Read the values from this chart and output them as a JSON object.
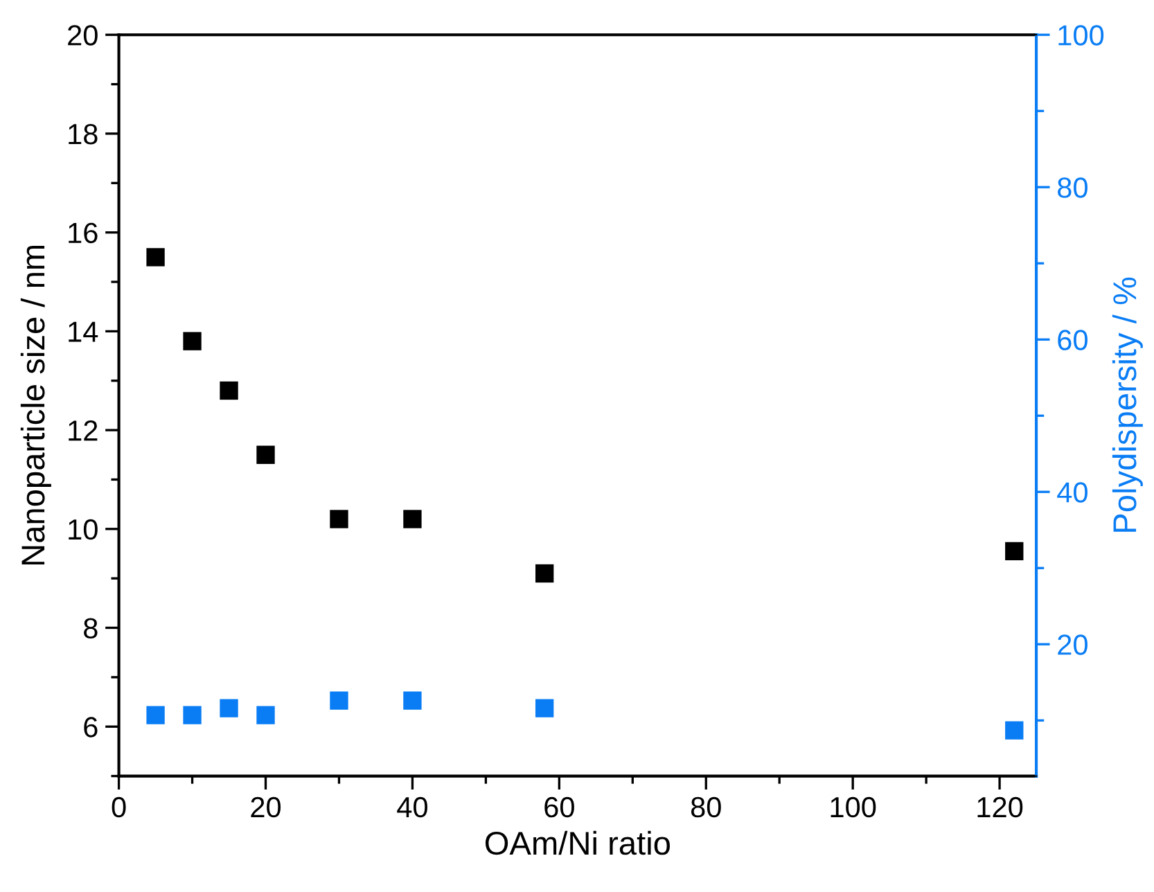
{
  "chart_data": {
    "type": "scatter",
    "xlabel": "OAm/Ni ratio",
    "ylabel": "Nanoparticle size / nm",
    "y2label": "Polydispersity / %",
    "marker": "square",
    "grid": false,
    "legend": false,
    "x": [
      5,
      10,
      15,
      20,
      30,
      40,
      58,
      122
    ],
    "series": [
      {
        "color": "#000000",
        "values": [
          15.5,
          13.8,
          12.8,
          11.5,
          10.2,
          10.2,
          9.1,
          9.55
        ]
      },
      {
        "color": "#0a7df5",
        "axis": "y2",
        "values": [
          10.7,
          10.7,
          11.6,
          10.7,
          12.6,
          12.6,
          11.6,
          8.7
        ]
      }
    ],
    "xlim": [
      0,
      125
    ],
    "xticks": [
      0,
      {
        "value": 10,
        "label": null
      },
      20,
      {
        "value": 30,
        "label": null
      },
      40,
      {
        "value": 50,
        "label": null
      },
      60,
      {
        "value": 70,
        "label": null
      },
      80,
      {
        "value": 90,
        "label": null
      },
      100,
      {
        "value": 110,
        "label": null
      },
      120
    ],
    "ylim": [
      5,
      20
    ],
    "yticks": [
      {
        "value": 5,
        "label": null
      },
      6,
      {
        "value": 7,
        "label": null
      },
      8,
      {
        "value": 9,
        "label": null
      },
      10,
      {
        "value": 11,
        "label": null
      },
      12,
      {
        "value": 13,
        "label": null
      },
      14,
      {
        "value": 15,
        "label": null
      },
      16,
      {
        "value": 17,
        "label": null
      },
      18,
      {
        "value": 19,
        "label": null
      },
      20
    ],
    "y2lim": [
      2.7,
      100
    ],
    "y2ticks": [
      {
        "value": 10,
        "label": null
      },
      20,
      {
        "value": 30,
        "label": null
      },
      40,
      {
        "value": 50,
        "label": null
      },
      60,
      {
        "value": 70,
        "label": null
      },
      80,
      {
        "value": 90,
        "label": null
      },
      100
    ]
  }
}
